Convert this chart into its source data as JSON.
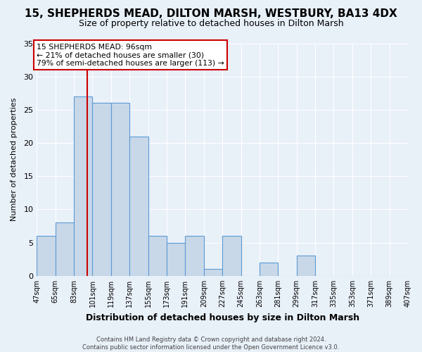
{
  "title": "15, SHEPHERDS MEAD, DILTON MARSH, WESTBURY, BA13 4DX",
  "subtitle": "Size of property relative to detached houses in Dilton Marsh",
  "xlabel": "Distribution of detached houses by size in Dilton Marsh",
  "ylabel": "Number of detached properties",
  "bin_edges": [
    47,
    65,
    83,
    101,
    119,
    137,
    155,
    173,
    191,
    209,
    227,
    245,
    263,
    281,
    299,
    317,
    335,
    353,
    371,
    389,
    407
  ],
  "bin_labels": [
    "47sqm",
    "65sqm",
    "83sqm",
    "101sqm",
    "119sqm",
    "137sqm",
    "155sqm",
    "173sqm",
    "191sqm",
    "209sqm",
    "227sqm",
    "245sqm",
    "263sqm",
    "281sqm",
    "299sqm",
    "317sqm",
    "335sqm",
    "353sqm",
    "371sqm",
    "389sqm",
    "407sqm"
  ],
  "counts": [
    6,
    8,
    27,
    26,
    26,
    21,
    6,
    5,
    6,
    1,
    6,
    0,
    2,
    0,
    3,
    0,
    0,
    0,
    0,
    0
  ],
  "bar_color": "#c8d8e8",
  "bar_edge_color": "#5b9bd5",
  "vline_x": 96,
  "vline_color": "#cc0000",
  "annotation_text": "15 SHEPHERDS MEAD: 96sqm\n← 21% of detached houses are smaller (30)\n79% of semi-detached houses are larger (113) →",
  "annotation_box_color": "#ffffff",
  "annotation_box_edge": "#cc0000",
  "ylim": [
    0,
    35
  ],
  "yticks": [
    0,
    5,
    10,
    15,
    20,
    25,
    30,
    35
  ],
  "footer_line1": "Contains HM Land Registry data © Crown copyright and database right 2024.",
  "footer_line2": "Contains public sector information licensed under the Open Government Licence v3.0.",
  "background_color": "#e8f0f8",
  "plot_background": "#e8f0f8",
  "title_fontsize": 11,
  "subtitle_fontsize": 9,
  "ylabel_fontsize": 8,
  "xlabel_fontsize": 9
}
